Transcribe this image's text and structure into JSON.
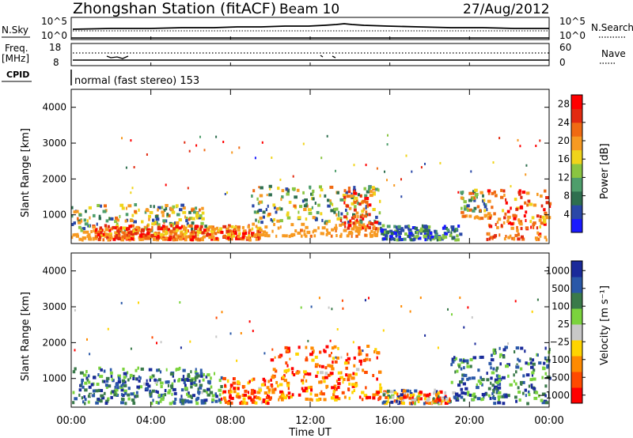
{
  "header": {
    "title": "Zhongshan Station (fitACF)",
    "beam": "Beam 10",
    "date": "27/Aug/2012"
  },
  "summary_panels": {
    "sky": {
      "label": "N.Sky",
      "tick_top": "10^5",
      "tick_bottom": "10^0"
    },
    "search": {
      "label": "N.Search",
      "tick_top": "10^5",
      "tick_bottom": "10^0"
    },
    "freq": {
      "label_line1": "Freq.",
      "label_line2": "[MHz]",
      "tick_top": "18",
      "tick_bottom": "8"
    },
    "nave": {
      "label": "Nave",
      "tick_top": "60",
      "tick_bottom": "0"
    },
    "cpid": {
      "label": "CPID",
      "text": "normal (fast stereo) 153"
    }
  },
  "x_axis": {
    "label": "Time UT",
    "ticks": [
      "00:00",
      "04:00",
      "08:00",
      "12:00",
      "16:00",
      "20:00",
      "00:00"
    ]
  },
  "colors": {
    "power_scale": [
      "#1a1aff",
      "#2a48a8",
      "#2e6f4f",
      "#4e9e6b",
      "#8ac541",
      "#f0d41a",
      "#f79a22",
      "#f06a12",
      "#e22a10",
      "#ff0000"
    ],
    "velocity_scale": [
      "#ff0000",
      "#ff4a00",
      "#ff8a00",
      "#ffd400",
      "#c8c8c8",
      "#7bd33d",
      "#3a7a4a",
      "#2a58a8",
      "#1a2a9a"
    ]
  },
  "chart_data": [
    {
      "type": "heatmap",
      "title": "Power",
      "xlabel": "Time UT",
      "ylabel": "Slant Range [km]",
      "xlim": [
        "00:00",
        "24:00"
      ],
      "ylim": [
        200,
        4500
      ],
      "y_ticks": [
        "1000",
        "2000",
        "3000",
        "4000"
      ],
      "colorbar": {
        "label": "Power [dB]",
        "range": [
          0,
          30
        ],
        "ticks": [
          "4",
          "8",
          "12",
          "16",
          "20",
          "24",
          "28"
        ]
      },
      "regions": [
        {
          "t0": 0.0,
          "t1": 6.8,
          "r0": 300,
          "r1": 1300,
          "level": "mid"
        },
        {
          "t0": 1.0,
          "t1": 9.5,
          "r0": 300,
          "r1": 700,
          "level": "high"
        },
        {
          "t0": 9.0,
          "t1": 15.5,
          "r0": 400,
          "r1": 1800,
          "level": "mid"
        },
        {
          "t0": 13.5,
          "t1": 15.3,
          "r0": 600,
          "r1": 1700,
          "level": "high"
        },
        {
          "t0": 15.5,
          "t1": 19.5,
          "r0": 300,
          "r1": 700,
          "level": "low"
        },
        {
          "t0": 19.5,
          "t1": 21.0,
          "r0": 900,
          "r1": 1700,
          "level": "mid"
        },
        {
          "t0": 20.8,
          "t1": 24.0,
          "r0": 300,
          "r1": 1700,
          "level": "high"
        }
      ]
    },
    {
      "type": "heatmap",
      "title": "Velocity",
      "xlabel": "Time UT",
      "ylabel": "Slant Range [km]",
      "xlim": [
        "00:00",
        "24:00"
      ],
      "ylim": [
        200,
        4500
      ],
      "y_ticks": [
        "1000",
        "2000",
        "3000",
        "4000"
      ],
      "colorbar": {
        "label": "Velocity [m s⁻¹]",
        "ticks": [
          "1000",
          "500",
          "100",
          "25",
          "−25",
          "−100",
          "−500",
          "−1000"
        ]
      },
      "regions": [
        {
          "t0": 0.0,
          "t1": 7.5,
          "r0": 300,
          "r1": 1300,
          "level": "positive"
        },
        {
          "t0": 7.5,
          "t1": 10.0,
          "r0": 300,
          "r1": 1000,
          "level": "negative"
        },
        {
          "t0": 10.0,
          "t1": 15.5,
          "r0": 400,
          "r1": 1900,
          "level": "negative"
        },
        {
          "t0": 15.5,
          "t1": 19.0,
          "r0": 300,
          "r1": 700,
          "level": "mixed"
        },
        {
          "t0": 19.0,
          "t1": 21.5,
          "r0": 400,
          "r1": 1600,
          "level": "positive"
        },
        {
          "t0": 21.0,
          "t1": 24.0,
          "r0": 300,
          "r1": 1900,
          "level": "positive"
        }
      ]
    }
  ]
}
